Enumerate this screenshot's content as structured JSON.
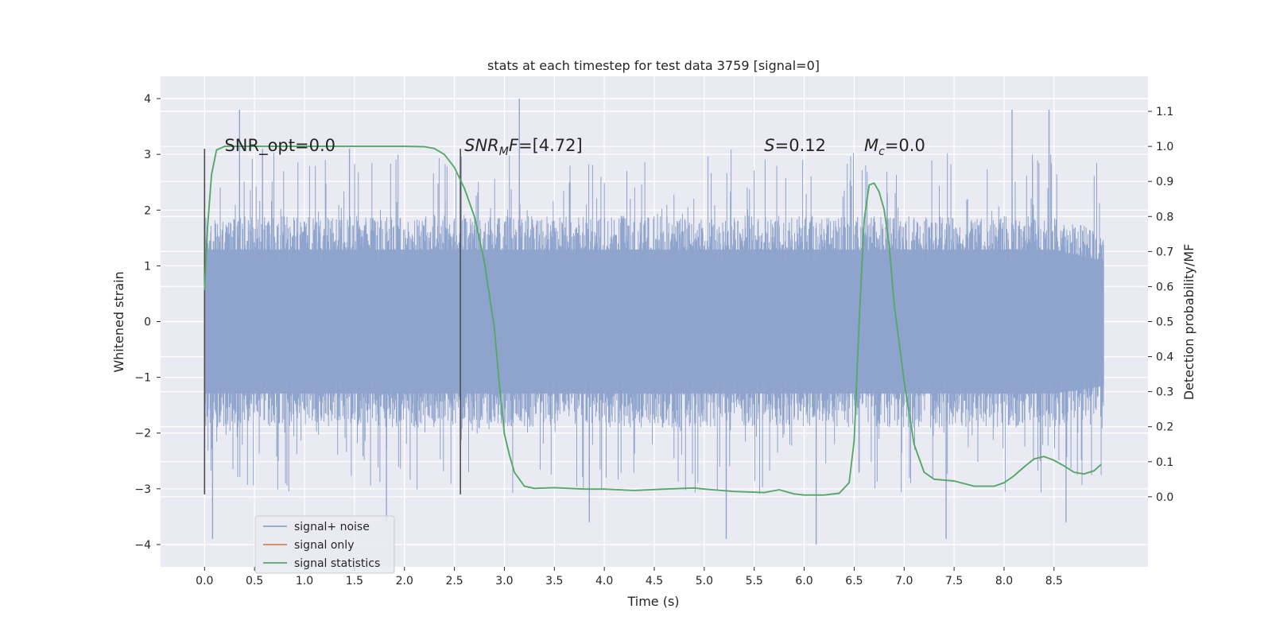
{
  "chart_data": {
    "type": "line",
    "title": "stats at each timestep for test data 3759 [signal=0]",
    "xlabel": "Time (s)",
    "ylabel_left": "Whitened strain",
    "ylabel_right": "Detection probability/MF",
    "xlim": [
      -0.44,
      9.44
    ],
    "ylim_left": [
      -4.4,
      4.4
    ],
    "ylim_right": [
      -0.2,
      1.2
    ],
    "x_ticks": [
      "0.0",
      "0.5",
      "1.0",
      "1.5",
      "2.0",
      "2.5",
      "3.0",
      "3.5",
      "4.0",
      "4.5",
      "5.0",
      "5.5",
      "6.0",
      "6.5",
      "7.0",
      "7.5",
      "8.0",
      "8.5"
    ],
    "y_ticks_left": [
      "4",
      "3",
      "2",
      "1",
      "0",
      "−1",
      "−2",
      "−3",
      "−4"
    ],
    "y_ticks_right": [
      "1.1",
      "1.0",
      "0.9",
      "0.8",
      "0.7",
      "0.6",
      "0.5",
      "0.4",
      "0.3",
      "0.2",
      "0.1",
      "0.0"
    ],
    "grid": true,
    "legend_position": "lower-left",
    "series": [
      {
        "name": "signal+ noise",
        "color": "#8fa4cc",
        "x_range": [
          0.0,
          9.0
        ],
        "envelope_upper": [
          1.9,
          1.9,
          1.9,
          1.9,
          1.9,
          1.9,
          1.9,
          1.9,
          1.9,
          1.9,
          1.9,
          1.9,
          1.9,
          1.9,
          1.9,
          1.9,
          1.9,
          1.9,
          1.6
        ],
        "envelope_lower": [
          -1.9,
          -1.9,
          -1.9,
          -1.9,
          -1.9,
          -1.9,
          -1.9,
          -1.9,
          -1.9,
          -1.9,
          -1.9,
          -1.9,
          -1.9,
          -1.9,
          -1.9,
          -1.9,
          -1.9,
          -1.9,
          -1.7
        ],
        "peaks": [
          {
            "x": 0.08,
            "y": -3.9
          },
          {
            "x": 0.35,
            "y": 3.8
          },
          {
            "x": 0.58,
            "y": 3.1
          },
          {
            "x": 1.45,
            "y": 3.1
          },
          {
            "x": 1.82,
            "y": -3.6
          },
          {
            "x": 3.15,
            "y": 4.0
          },
          {
            "x": 3.85,
            "y": -3.6
          },
          {
            "x": 5.22,
            "y": -3.9
          },
          {
            "x": 6.12,
            "y": -4.0
          },
          {
            "x": 7.42,
            "y": -3.9
          },
          {
            "x": 8.08,
            "y": 3.8
          },
          {
            "x": 8.45,
            "y": 3.8
          },
          {
            "x": 8.62,
            "y": -3.6
          }
        ]
      },
      {
        "name": "signal only",
        "color": "#dd8452",
        "x": [],
        "y": []
      },
      {
        "name": "signal statistics",
        "color": "#55a868",
        "axis": "right",
        "x": [
          0.0,
          0.03,
          0.07,
          0.12,
          0.2,
          0.5,
          1.0,
          1.5,
          2.0,
          2.2,
          2.3,
          2.4,
          2.5,
          2.6,
          2.7,
          2.8,
          2.9,
          2.95,
          3.0,
          3.05,
          3.1,
          3.2,
          3.3,
          3.5,
          3.8,
          4.0,
          4.3,
          4.6,
          4.9,
          5.0,
          5.3,
          5.6,
          5.75,
          5.9,
          6.0,
          6.2,
          6.35,
          6.45,
          6.5,
          6.55,
          6.6,
          6.65,
          6.7,
          6.75,
          6.8,
          6.85,
          6.9,
          7.0,
          7.1,
          7.2,
          7.3,
          7.5,
          7.7,
          7.9,
          8.0,
          8.1,
          8.2,
          8.3,
          8.4,
          8.5,
          8.6,
          8.7,
          8.8,
          8.9,
          8.97
        ],
        "y": [
          0.59,
          0.77,
          0.92,
          0.99,
          1.0,
          1.0,
          1.0,
          1.0,
          1.0,
          0.999,
          0.994,
          0.977,
          0.94,
          0.88,
          0.8,
          0.67,
          0.48,
          0.32,
          0.18,
          0.12,
          0.07,
          0.03,
          0.024,
          0.026,
          0.022,
          0.022,
          0.018,
          0.022,
          0.025,
          0.022,
          0.015,
          0.012,
          0.02,
          0.008,
          0.005,
          0.005,
          0.01,
          0.04,
          0.16,
          0.5,
          0.79,
          0.89,
          0.895,
          0.87,
          0.82,
          0.72,
          0.55,
          0.33,
          0.15,
          0.07,
          0.05,
          0.045,
          0.03,
          0.03,
          0.04,
          0.06,
          0.085,
          0.108,
          0.115,
          0.104,
          0.088,
          0.07,
          0.065,
          0.074,
          0.092
        ]
      }
    ],
    "vertical_markers": [
      {
        "x": 0.0,
        "y_from": -3.1,
        "y_to": 3.1
      },
      {
        "x": 2.56,
        "y_from": -3.1,
        "y_to": 3.1
      }
    ],
    "annotations": [
      {
        "text": "SNR_opt=0.0",
        "x": 0.2,
        "y": 3.1
      },
      {
        "text": "SNR",
        "sub": "M",
        "tail": "F=[4.72]",
        "x": 2.6,
        "y": 3.1
      },
      {
        "text": "S",
        "tail": "=0.12",
        "x": 5.6,
        "y": 3.1
      },
      {
        "text": "M",
        "sub": "c",
        "tail": "=0.0",
        "x": 6.6,
        "y": 3.1
      }
    ]
  }
}
